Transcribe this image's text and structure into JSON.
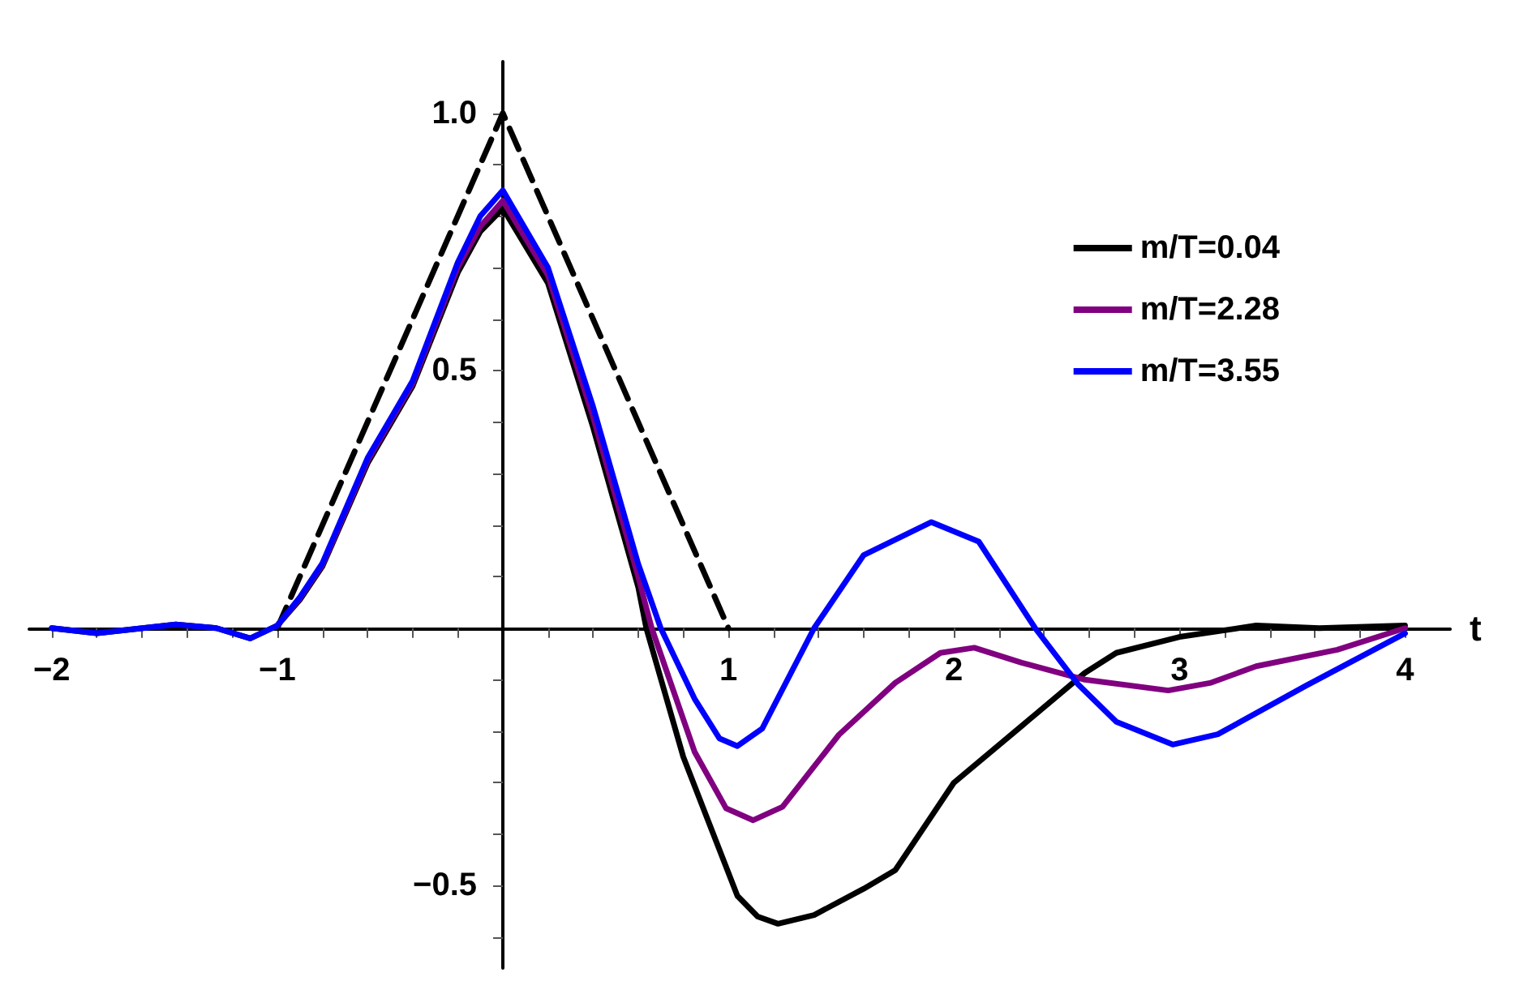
{
  "chart_data": {
    "type": "line",
    "xlabel": "t",
    "xlim": [
      -2.1,
      4.2
    ],
    "ylim": [
      -0.66,
      1.1
    ],
    "xticks": [
      {
        "value": -2,
        "label": "−2"
      },
      {
        "value": -1.8,
        "label": null
      },
      {
        "value": -1.6,
        "label": null
      },
      {
        "value": -1.4,
        "label": null
      },
      {
        "value": -1.2,
        "label": null
      },
      {
        "value": -1,
        "label": "−1"
      },
      {
        "value": -0.8,
        "label": null
      },
      {
        "value": -0.6,
        "label": null
      },
      {
        "value": -0.4,
        "label": null
      },
      {
        "value": -0.2,
        "label": null
      },
      {
        "value": 0.2,
        "label": null
      },
      {
        "value": 0.4,
        "label": null
      },
      {
        "value": 0.6,
        "label": null
      },
      {
        "value": 0.8,
        "label": null
      },
      1,
      {
        "value": 1.2,
        "label": null
      },
      {
        "value": 1.4,
        "label": null
      },
      {
        "value": 1.6,
        "label": null
      },
      {
        "value": 1.8,
        "label": null
      },
      2,
      {
        "value": 2.2,
        "label": null
      },
      {
        "value": 2.4,
        "label": null
      },
      {
        "value": 2.6,
        "label": null
      },
      {
        "value": 2.8,
        "label": null
      },
      3,
      {
        "value": 3.2,
        "label": null
      },
      {
        "value": 3.4,
        "label": null
      },
      {
        "value": 3.6,
        "label": null
      },
      {
        "value": 3.8,
        "label": null
      },
      4
    ],
    "yticks": [
      {
        "value": -0.6,
        "label": null
      },
      {
        "value": -0.5,
        "label": "−0.5"
      },
      {
        "value": -0.4,
        "label": null
      },
      {
        "value": -0.3,
        "label": null
      },
      {
        "value": -0.2,
        "label": null
      },
      {
        "value": -0.1,
        "label": null
      },
      {
        "value": 0.1,
        "label": null
      },
      {
        "value": 0.2,
        "label": null
      },
      {
        "value": 0.3,
        "label": null
      },
      {
        "value": 0.4,
        "label": null
      },
      0.5,
      {
        "value": 0.6,
        "label": null
      },
      {
        "value": 0.7,
        "label": null
      },
      {
        "value": 0.8,
        "label": null
      },
      {
        "value": 0.9,
        "label": null
      },
      {
        "value": 1,
        "label": "1.0"
      }
    ],
    "grid": false,
    "legend": "top right",
    "marker": "none",
    "series": [
      {
        "name": "m/T=0.04",
        "color": "#000000",
        "x": [
          -2,
          -1.8,
          -1.45,
          -1.27,
          -1.12,
          -1,
          -0.9,
          -0.8,
          -0.6,
          -0.4,
          -0.2,
          -0.1,
          0,
          0.2,
          0.4,
          0.6,
          0.636,
          0.8,
          1.04,
          1.13,
          1.22,
          1.38,
          1.6,
          1.74,
          2,
          2.3,
          2.58,
          2.72,
          3,
          3.34,
          3.62,
          4
        ],
        "values": [
          0,
          -0.01,
          0.007,
          0,
          -0.02,
          0.005,
          0.055,
          0.12,
          0.32,
          0.47,
          0.69,
          0.77,
          0.815,
          0.67,
          0.39,
          0.08,
          0,
          -0.25,
          -0.52,
          -0.56,
          -0.574,
          -0.557,
          -0.506,
          -0.47,
          -0.3,
          -0.19,
          -0.087,
          -0.048,
          -0.017,
          0.005,
          0,
          0.005
        ]
      },
      {
        "name": "m/T=2.28",
        "color": "#800080",
        "x": [
          -1,
          -0.9,
          -0.8,
          -0.6,
          -0.4,
          -0.2,
          -0.1,
          0,
          0.2,
          0.4,
          0.6,
          0.66,
          0.85,
          0.99,
          1.11,
          1.24,
          1.49,
          1.74,
          1.94,
          2.09,
          2.3,
          2.58,
          2.95,
          3.14,
          3.34,
          3.7,
          4
        ],
        "values": [
          0.005,
          0.058,
          0.123,
          0.325,
          0.475,
          0.7,
          0.78,
          0.83,
          0.685,
          0.41,
          0.1,
          0,
          -0.24,
          -0.35,
          -0.373,
          -0.347,
          -0.207,
          -0.106,
          -0.048,
          -0.038,
          -0.067,
          -0.1,
          -0.121,
          -0.106,
          -0.074,
          -0.042,
          0
        ]
      },
      {
        "name": "m/T=3.55",
        "color": "#0000ff",
        "x": [
          -2,
          -1.8,
          -1.45,
          -1.27,
          -1.12,
          -1,
          -0.9,
          -0.8,
          -0.6,
          -0.4,
          -0.2,
          -0.1,
          0,
          0.2,
          0.4,
          0.6,
          0.7,
          0.85,
          0.96,
          1.04,
          1.15,
          1.38,
          1.6,
          1.9,
          2.11,
          2.36,
          2.55,
          2.72,
          2.97,
          3.17,
          3.56,
          4
        ],
        "values": [
          0,
          -0.01,
          0.007,
          0,
          -0.02,
          0.005,
          0.06,
          0.126,
          0.33,
          0.48,
          0.71,
          0.8,
          0.85,
          0.7,
          0.43,
          0.125,
          0,
          -0.137,
          -0.214,
          -0.229,
          -0.195,
          0,
          0.142,
          0.206,
          0.168,
          0,
          -0.109,
          -0.182,
          -0.226,
          -0.206,
          -0.112,
          -0.01
        ]
      },
      {
        "color": "#000000",
        "line_style": "dashed",
        "x": [
          -1,
          0,
          1
        ],
        "values": [
          0,
          1,
          0
        ]
      }
    ]
  }
}
